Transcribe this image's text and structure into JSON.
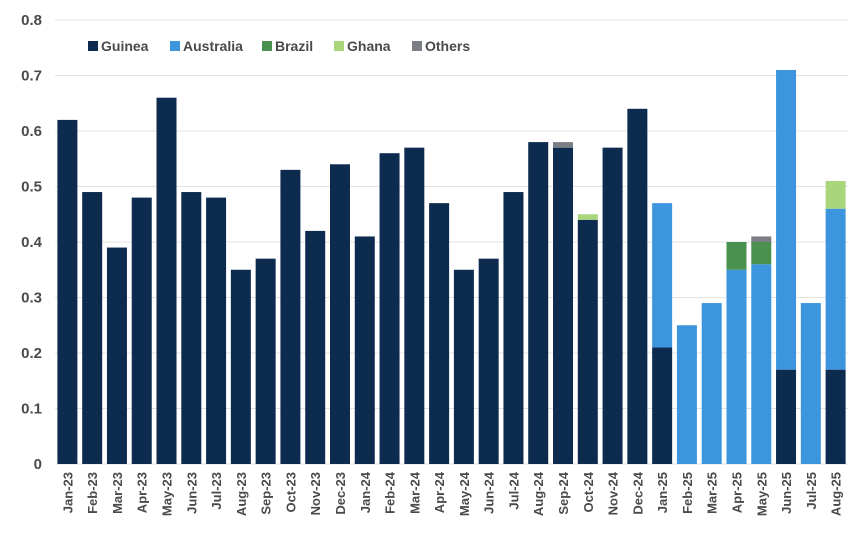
{
  "chart_data": {
    "type": "bar",
    "stacked": true,
    "title": "",
    "xlabel": "",
    "ylabel": "",
    "ylim": [
      0,
      0.8
    ],
    "yticks": [
      "0",
      "0.1",
      "0.2",
      "0.3",
      "0.4",
      "0.5",
      "0.6",
      "0.7",
      "0.8"
    ],
    "grid": true,
    "legend_position": "top-left",
    "categories": [
      "Jan-23",
      "Feb-23",
      "Mar-23",
      "Apr-23",
      "May-23",
      "Jun-23",
      "Jul-23",
      "Aug-23",
      "Sep-23",
      "Oct-23",
      "Nov-23",
      "Dec-23",
      "Jan-24",
      "Feb-24",
      "Mar-24",
      "Apr-24",
      "May-24",
      "Jun-24",
      "Jul-24",
      "Aug-24",
      "Sep-24",
      "Oct-24",
      "Nov-24",
      "Dec-24",
      "Jan-25",
      "Feb-25",
      "Mar-25",
      "Apr-25",
      "May-25",
      "Jun-25",
      "Jul-25",
      "Aug-25"
    ],
    "series": [
      {
        "name": "Guinea",
        "color": "#0d2b4e",
        "values": [
          0.62,
          0.49,
          0.39,
          0.48,
          0.66,
          0.49,
          0.48,
          0.35,
          0.37,
          0.53,
          0.42,
          0.54,
          0.41,
          0.56,
          0.57,
          0.47,
          0.35,
          0.37,
          0.49,
          0.58,
          0.57,
          0.44,
          0.57,
          0.64,
          0.21,
          0,
          0,
          0,
          0,
          0.17,
          0,
          0.17
        ]
      },
      {
        "name": "Australia",
        "color": "#3d95de",
        "values": [
          0,
          0,
          0,
          0,
          0,
          0,
          0,
          0,
          0,
          0,
          0,
          0,
          0,
          0,
          0,
          0,
          0,
          0,
          0,
          0,
          0,
          0,
          0,
          0,
          0.26,
          0.25,
          0.29,
          0.35,
          0.36,
          0.54,
          0.29,
          0.29
        ]
      },
      {
        "name": "Brazil",
        "color": "#4a9150",
        "values": [
          0,
          0,
          0,
          0,
          0,
          0,
          0,
          0,
          0,
          0,
          0,
          0,
          0,
          0,
          0,
          0,
          0,
          0,
          0,
          0,
          0,
          0,
          0,
          0,
          0,
          0,
          0,
          0.05,
          0.04,
          0,
          0,
          0
        ]
      },
      {
        "name": "Ghana",
        "color": "#a9d67b",
        "values": [
          0,
          0,
          0,
          0,
          0,
          0,
          0,
          0,
          0,
          0,
          0,
          0,
          0,
          0,
          0,
          0,
          0,
          0,
          0,
          0,
          0,
          0.01,
          0,
          0,
          0,
          0,
          0,
          0,
          0,
          0,
          0,
          0.05
        ]
      },
      {
        "name": "Others",
        "color": "#7b7f85",
        "values": [
          0,
          0,
          0,
          0,
          0,
          0,
          0,
          0,
          0,
          0,
          0,
          0,
          0,
          0,
          0,
          0,
          0,
          0,
          0,
          0,
          0.01,
          0,
          0,
          0,
          0,
          0,
          0,
          0,
          0.01,
          0,
          0,
          0
        ]
      }
    ]
  }
}
